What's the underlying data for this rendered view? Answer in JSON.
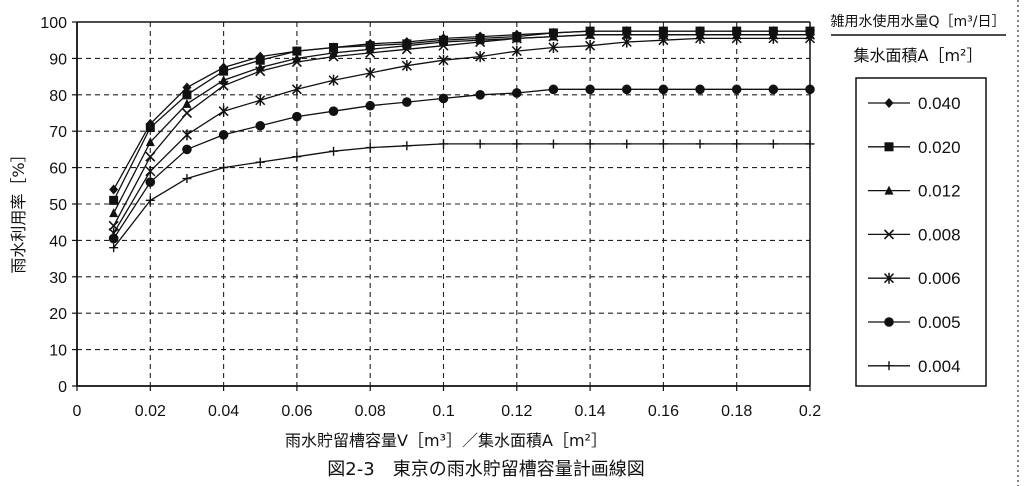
{
  "chart_data": {
    "type": "line",
    "title": "",
    "caption": "図2-3　東京の雨水貯留槽容量計画線図",
    "xlabel": "雨水貯留槽容量V［m³］／集水面積A［m²］",
    "ylabel": "雨水利用率［%］",
    "xlim": [
      0,
      0.2
    ],
    "ylim": [
      0,
      100
    ],
    "x_ticks": [
      "0",
      "0.02",
      "0.04",
      "0.06",
      "0.08",
      "0.1",
      "0.12",
      "0.14",
      "0.16",
      "0.18",
      "0.2"
    ],
    "y_ticks": [
      "0",
      "10",
      "20",
      "30",
      "40",
      "50",
      "60",
      "70",
      "80",
      "90",
      "100"
    ],
    "grid": true,
    "legend": {
      "placement": "right",
      "header_top": "雑用水使用水量Q［m³/日］",
      "header_bottom": "集水面積A［m²］"
    },
    "x": [
      0.01,
      0.02,
      0.03,
      0.04,
      0.05,
      0.06,
      0.07,
      0.08,
      0.09,
      0.1,
      0.11,
      0.12,
      0.13,
      0.14,
      0.15,
      0.16,
      0.17,
      0.18,
      0.19,
      0.2
    ],
    "series": [
      {
        "name": "0.040",
        "marker": "diamond",
        "values": [
          54,
          72,
          82,
          87.5,
          90.5,
          92,
          93,
          94,
          94.5,
          95.5,
          96,
          96.5,
          97,
          97.5,
          97.5,
          97.5,
          97.5,
          97.5,
          97.5,
          97.5
        ]
      },
      {
        "name": "0.020",
        "marker": "square",
        "values": [
          51,
          71,
          80,
          86.5,
          89.5,
          92,
          93,
          93.5,
          94,
          95,
          95.5,
          96,
          97,
          97.5,
          97.5,
          97.5,
          97.5,
          97.5,
          97.5,
          97.5
        ]
      },
      {
        "name": "0.012",
        "marker": "triangle",
        "values": [
          47.5,
          67,
          77.5,
          84,
          87.5,
          90,
          91.5,
          92.5,
          93.5,
          94.5,
          95,
          95.5,
          96,
          96.5,
          96.5,
          96.5,
          96.5,
          96.5,
          96.5,
          96.5
        ]
      },
      {
        "name": "0.008",
        "marker": "x",
        "values": [
          44,
          63,
          75,
          82.5,
          86.5,
          89,
          90.5,
          91.5,
          92.5,
          93.5,
          94.5,
          95.5,
          96,
          96.5,
          96.5,
          96.5,
          96.5,
          96.5,
          96.5,
          96.5
        ]
      },
      {
        "name": "0.006",
        "marker": "asterisk",
        "values": [
          42,
          59,
          69,
          75.5,
          78.5,
          81.5,
          84,
          86,
          88,
          89.5,
          90.5,
          92,
          93,
          93.5,
          94.5,
          95,
          95.5,
          95.5,
          95.5,
          95.5
        ]
      },
      {
        "name": "0.005",
        "marker": "circle",
        "values": [
          40.5,
          56,
          65,
          69,
          71.5,
          74,
          75.5,
          77,
          78,
          79,
          80,
          80.5,
          81.5,
          81.5,
          81.5,
          81.5,
          81.5,
          81.5,
          81.5,
          81.5
        ]
      },
      {
        "name": "0.004",
        "marker": "plus",
        "values": [
          38,
          51,
          57,
          60,
          61.5,
          63,
          64.5,
          65.5,
          66,
          66.5,
          66.5,
          66.5,
          66.5,
          66.5,
          66.5,
          66.5,
          66.5,
          66.5,
          66.5,
          66.5
        ]
      }
    ]
  }
}
